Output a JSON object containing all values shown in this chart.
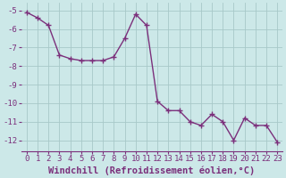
{
  "x": [
    0,
    1,
    2,
    3,
    4,
    5,
    6,
    7,
    8,
    9,
    10,
    11,
    12,
    13,
    14,
    15,
    16,
    17,
    18,
    19,
    20,
    21,
    22,
    23
  ],
  "y": [
    -5.1,
    -5.4,
    -5.8,
    -7.4,
    -7.6,
    -7.7,
    -7.7,
    -7.7,
    -7.5,
    -6.5,
    -5.2,
    -5.8,
    -9.9,
    -10.4,
    -10.4,
    -11.0,
    -11.2,
    -10.6,
    -11.0,
    -12.0,
    -10.8,
    -11.2,
    -11.2,
    -12.1
  ],
  "line_color": "#7b2f7b",
  "marker": "+",
  "marker_size": 4,
  "bg_color": "#cce8e8",
  "grid_color": "#a8c8c8",
  "xlabel": "Windchill (Refroidissement éolien,°C)",
  "xlim": [
    -0.5,
    23.5
  ],
  "ylim": [
    -12.6,
    -4.6
  ],
  "yticks": [
    -12,
    -11,
    -10,
    -9,
    -8,
    -7,
    -6,
    -5
  ],
  "xticks": [
    0,
    1,
    2,
    3,
    4,
    5,
    6,
    7,
    8,
    9,
    10,
    11,
    12,
    13,
    14,
    15,
    16,
    17,
    18,
    19,
    20,
    21,
    22,
    23
  ],
  "tick_label_fontsize": 6.5,
  "xlabel_fontsize": 7.5,
  "linewidth": 1.0,
  "marker_linewidth": 1.0
}
